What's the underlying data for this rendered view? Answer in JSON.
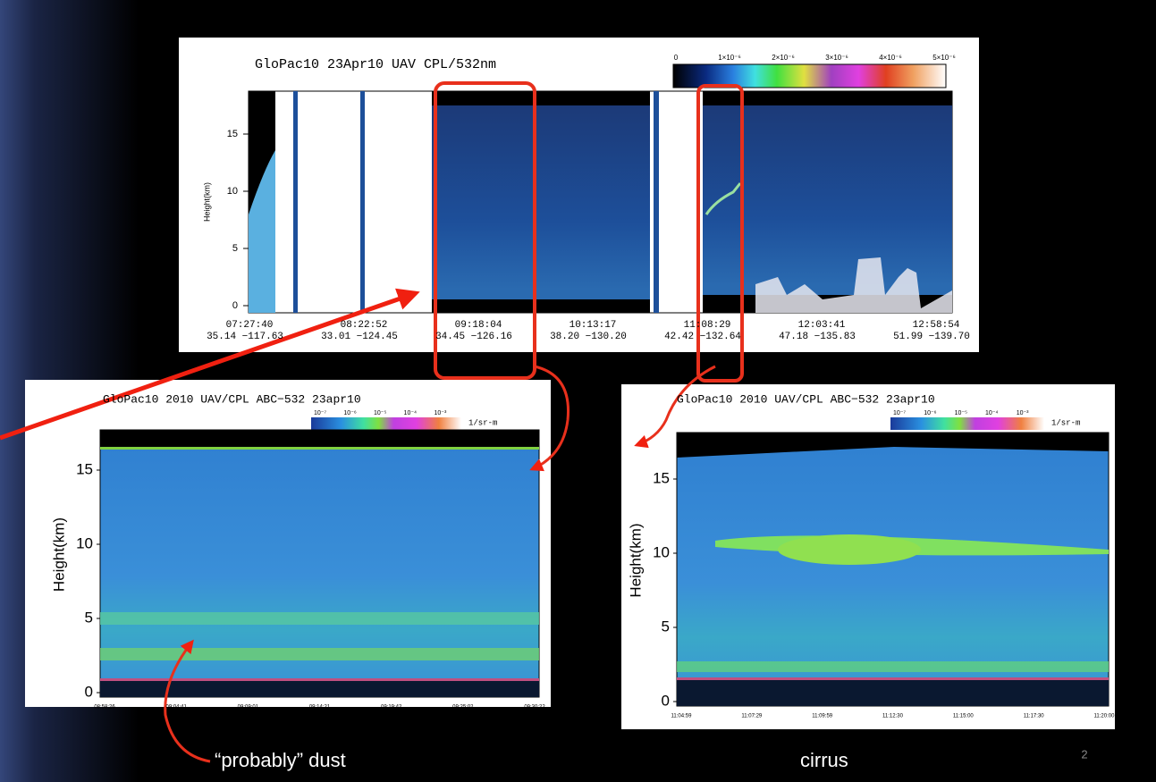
{
  "slide": {
    "page_number": "2",
    "top_panel": {
      "title": "GloPac10 23Apr10 UAV CPL/532nm",
      "colorbar_labels": [
        "0",
        "1×10⁻⁶",
        "2×10⁻⁶",
        "3×10⁻⁶",
        "4×10⁻⁶",
        "5×10⁻⁶"
      ],
      "y_label": "Height(km)",
      "y_ticks": [
        "0",
        "5",
        "10",
        "15"
      ],
      "x_ticks": [
        {
          "time": "07:27:40",
          "position": "35.14 −117.63"
        },
        {
          "time": "08:22:52",
          "position": "33.01 −124.45"
        },
        {
          "time": "09:18:04",
          "position": "34.45 −126.16"
        },
        {
          "time": "10:13:17",
          "position": "38.20 −130.20"
        },
        {
          "time": "11:08:29",
          "position": "42.42 −132.64"
        },
        {
          "time": "12:03:41",
          "position": "47.18 −135.83"
        },
        {
          "time": "12:58:54",
          "position": "51.99 −139.70"
        }
      ]
    },
    "bottom_left_panel": {
      "title": "GloPac10 2010 UAV/CPL ABC−532 23apr10",
      "colorbar_labels": [
        "10⁻⁷",
        "10⁻⁶",
        "10⁻⁵",
        "10⁻⁴",
        "10⁻³"
      ],
      "colorbar_unit": "1/sr-m",
      "y_label": "Height(km)",
      "y_ticks": [
        "0",
        "5",
        "10",
        "15"
      ],
      "x_ticks": [
        "08:58:26",
        "09:04:41",
        "09:09:01",
        "09:14:21",
        "09:19:42",
        "09:25:02",
        "09:30:22"
      ]
    },
    "bottom_right_panel": {
      "title": "GloPac10 2010 UAV/CPL ABC−532 23apr10",
      "colorbar_labels": [
        "10⁻⁷",
        "10⁻⁶",
        "10⁻⁵",
        "10⁻⁴",
        "10⁻³"
      ],
      "colorbar_unit": "1/sr-m",
      "y_label": "Height(km)",
      "y_ticks": [
        "0",
        "5",
        "10",
        "15"
      ],
      "x_ticks": [
        "11:04:59",
        "11:07:29",
        "11:09:59",
        "11:12:30",
        "11:15:00",
        "11:17:30",
        "11:20:00"
      ]
    },
    "annotations": {
      "dust": "“probably” dust",
      "cirrus": "cirrus"
    }
  }
}
